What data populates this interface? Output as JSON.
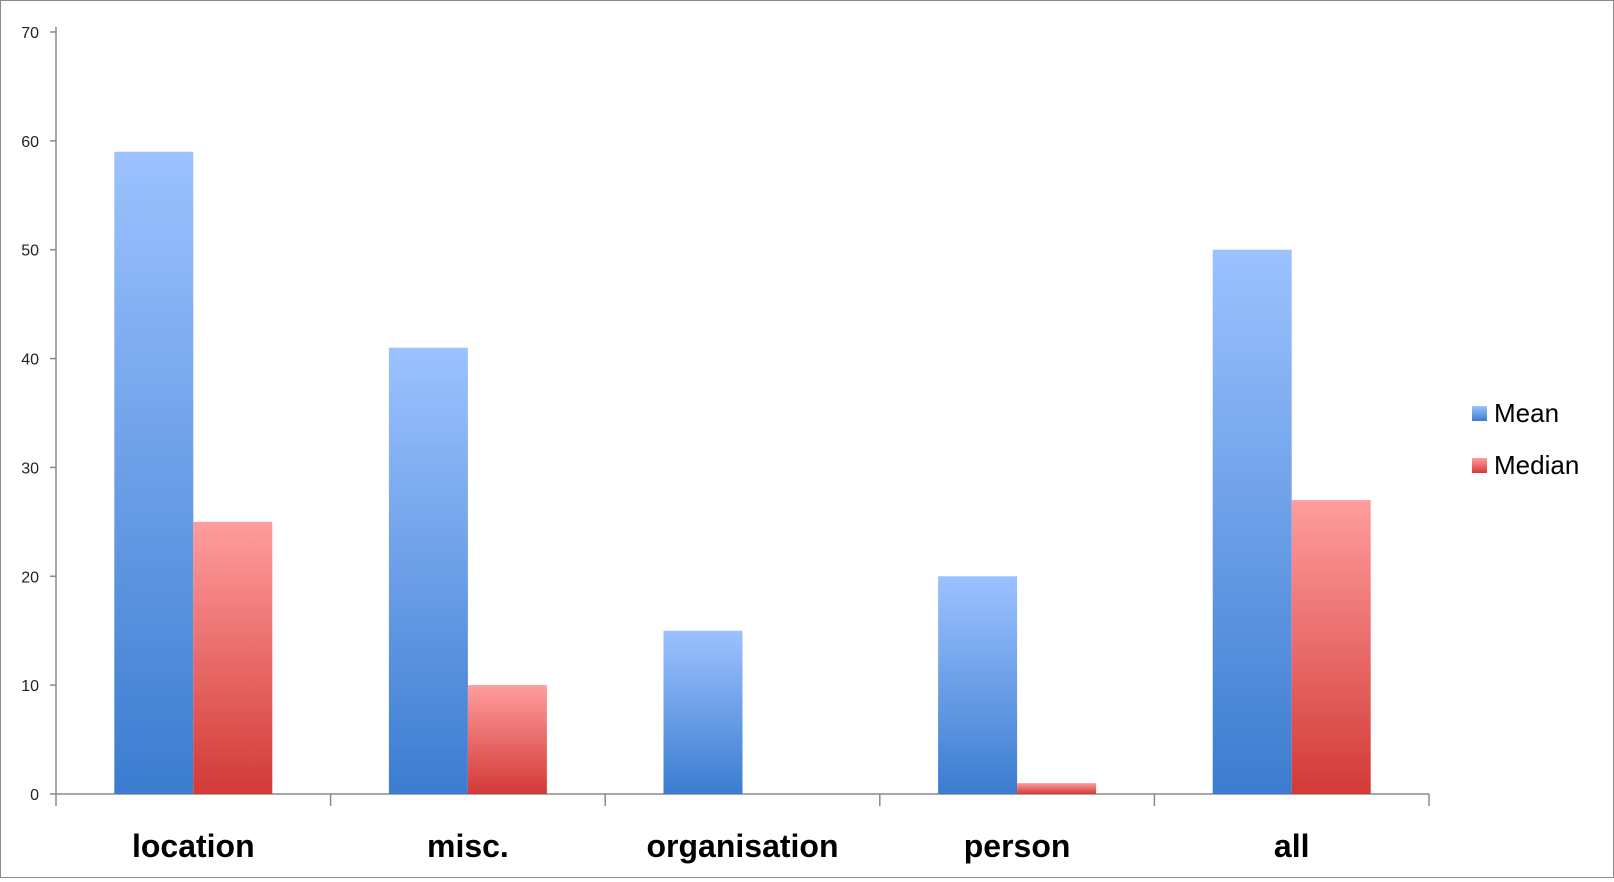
{
  "chart_data": {
    "type": "bar",
    "title": "",
    "xlabel": "",
    "ylabel": "",
    "categories": [
      "location",
      "misc.",
      "organisation",
      "person",
      "all"
    ],
    "series": [
      {
        "name": "Mean",
        "values": [
          59,
          41,
          15,
          20,
          50
        ],
        "color": "#5b91e0"
      },
      {
        "name": "Median",
        "values": [
          25,
          10,
          0,
          1,
          27
        ],
        "color": "#e05a5a"
      }
    ],
    "ylim": [
      0,
      70
    ],
    "yticks": [
      "0",
      "10",
      "20",
      "30",
      "40",
      "50",
      "60",
      "70"
    ],
    "grid": false,
    "legend_position": "right"
  }
}
